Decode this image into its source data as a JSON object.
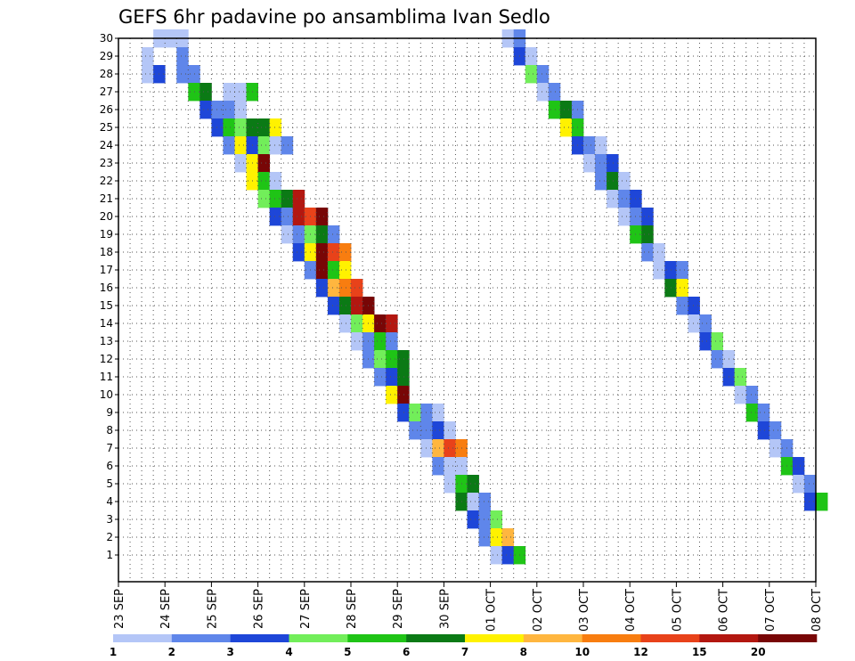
{
  "chart_data": {
    "type": "heatmap",
    "title": "GEFS 6hr padavine po ansamblima Ivan Sedlo",
    "y_labels": [
      "1",
      "2",
      "3",
      "4",
      "5",
      "6",
      "7",
      "8",
      "9",
      "10",
      "11",
      "12",
      "13",
      "14",
      "15",
      "16",
      "17",
      "18",
      "19",
      "20",
      "21",
      "22",
      "23",
      "24",
      "25",
      "26",
      "27",
      "28",
      "29",
      "30"
    ],
    "x_labels": [
      "23 SEP",
      "24 SEP",
      "25 SEP",
      "26 SEP",
      "27 SEP",
      "28 SEP",
      "29 SEP",
      "30 SEP",
      "01 OCT",
      "02 OCT",
      "03 OCT",
      "04 OCT",
      "05 OCT",
      "06 OCT",
      "07 OCT",
      "08 OCT"
    ],
    "x_range_steps": [
      0,
      60
    ],
    "y_range_members": [
      0,
      30
    ],
    "grid": true,
    "colorbar": {
      "levels": [
        "1",
        "2",
        "3",
        "4",
        "5",
        "6",
        "7",
        "8",
        "10",
        "12",
        "15",
        "20"
      ],
      "colors": [
        "#b4c6f7",
        "#5f86ea",
        "#1e46d8",
        "#72ee5a",
        "#1fc416",
        "#0b7a15",
        "#fff200",
        "#ffb63f",
        "#f87d10",
        "#e8421a",
        "#b31710",
        "#780606"
      ]
    },
    "cells": [
      [
        3,
        30,
        0
      ],
      [
        4,
        30,
        0
      ],
      [
        5,
        30,
        0
      ],
      [
        5,
        29,
        1
      ],
      [
        2,
        29,
        0
      ],
      [
        5,
        28,
        1
      ],
      [
        6,
        28,
        1
      ],
      [
        2,
        28,
        0
      ],
      [
        3,
        28,
        2
      ],
      [
        6,
        27,
        4
      ],
      [
        7,
        27,
        5
      ],
      [
        9,
        27,
        0
      ],
      [
        10,
        27,
        0
      ],
      [
        11,
        27,
        4
      ],
      [
        7,
        26,
        2
      ],
      [
        8,
        26,
        1
      ],
      [
        9,
        26,
        1
      ],
      [
        10,
        26,
        0
      ],
      [
        8,
        25,
        2
      ],
      [
        9,
        25,
        4
      ],
      [
        10,
        25,
        3
      ],
      [
        11,
        25,
        5
      ],
      [
        12,
        25,
        5
      ],
      [
        13,
        25,
        6
      ],
      [
        9,
        24,
        1
      ],
      [
        10,
        24,
        6
      ],
      [
        11,
        24,
        2
      ],
      [
        12,
        24,
        3
      ],
      [
        13,
        24,
        0
      ],
      [
        14,
        24,
        1
      ],
      [
        10,
        23,
        0
      ],
      [
        11,
        23,
        6
      ],
      [
        12,
        23,
        11
      ],
      [
        11,
        22,
        6
      ],
      [
        12,
        22,
        4
      ],
      [
        13,
        22,
        0
      ],
      [
        12,
        21,
        3
      ],
      [
        13,
        21,
        4
      ],
      [
        14,
        21,
        5
      ],
      [
        15,
        21,
        10
      ],
      [
        13,
        20,
        2
      ],
      [
        14,
        20,
        1
      ],
      [
        15,
        20,
        10
      ],
      [
        16,
        20,
        9
      ],
      [
        17,
        20,
        11
      ],
      [
        14,
        19,
        0
      ],
      [
        15,
        19,
        1
      ],
      [
        16,
        19,
        3
      ],
      [
        17,
        19,
        5
      ],
      [
        18,
        19,
        1
      ],
      [
        15,
        18,
        2
      ],
      [
        16,
        18,
        6
      ],
      [
        17,
        18,
        11
      ],
      [
        18,
        18,
        9
      ],
      [
        19,
        18,
        8
      ],
      [
        16,
        17,
        1
      ],
      [
        17,
        17,
        11
      ],
      [
        18,
        17,
        4
      ],
      [
        19,
        17,
        6
      ],
      [
        17,
        16,
        2
      ],
      [
        18,
        16,
        7
      ],
      [
        19,
        16,
        8
      ],
      [
        20,
        16,
        9
      ],
      [
        18,
        15,
        2
      ],
      [
        19,
        15,
        5
      ],
      [
        20,
        15,
        10
      ],
      [
        21,
        15,
        11
      ],
      [
        19,
        14,
        0
      ],
      [
        20,
        14,
        3
      ],
      [
        21,
        14,
        6
      ],
      [
        22,
        14,
        11
      ],
      [
        23,
        14,
        10
      ],
      [
        20,
        13,
        0
      ],
      [
        21,
        13,
        1
      ],
      [
        22,
        13,
        4
      ],
      [
        23,
        13,
        1
      ],
      [
        21,
        12,
        1
      ],
      [
        22,
        12,
        3
      ],
      [
        23,
        12,
        4
      ],
      [
        24,
        12,
        5
      ],
      [
        22,
        11,
        1
      ],
      [
        23,
        11,
        2
      ],
      [
        24,
        11,
        5
      ],
      [
        23,
        10,
        6
      ],
      [
        24,
        10,
        11
      ],
      [
        24,
        9,
        2
      ],
      [
        25,
        9,
        3
      ],
      [
        26,
        9,
        1
      ],
      [
        27,
        9,
        0
      ],
      [
        25,
        8,
        1
      ],
      [
        26,
        8,
        1
      ],
      [
        27,
        8,
        2
      ],
      [
        28,
        8,
        0
      ],
      [
        26,
        7,
        0
      ],
      [
        27,
        7,
        7
      ],
      [
        28,
        7,
        9
      ],
      [
        29,
        7,
        8
      ],
      [
        27,
        6,
        1
      ],
      [
        28,
        6,
        0
      ],
      [
        29,
        6,
        0
      ],
      [
        28,
        5,
        0
      ],
      [
        29,
        5,
        4
      ],
      [
        30,
        5,
        5
      ],
      [
        29,
        4,
        5
      ],
      [
        30,
        4,
        0
      ],
      [
        31,
        4,
        1
      ],
      [
        30,
        3,
        2
      ],
      [
        31,
        3,
        1
      ],
      [
        32,
        3,
        3
      ],
      [
        31,
        2,
        1
      ],
      [
        32,
        2,
        6
      ],
      [
        33,
        2,
        7
      ],
      [
        32,
        1,
        0
      ],
      [
        33,
        1,
        2
      ],
      [
        34,
        1,
        4
      ],
      [
        33,
        30,
        0
      ],
      [
        34,
        30,
        1
      ],
      [
        34,
        29,
        2
      ],
      [
        35,
        29,
        0
      ],
      [
        35,
        28,
        3
      ],
      [
        36,
        28,
        1
      ],
      [
        36,
        27,
        0
      ],
      [
        37,
        27,
        1
      ],
      [
        37,
        26,
        4
      ],
      [
        38,
        26,
        5
      ],
      [
        39,
        26,
        1
      ],
      [
        38,
        25,
        6
      ],
      [
        39,
        25,
        4
      ],
      [
        39,
        24,
        2
      ],
      [
        40,
        24,
        1
      ],
      [
        41,
        24,
        0
      ],
      [
        40,
        23,
        0
      ],
      [
        41,
        23,
        1
      ],
      [
        42,
        23,
        2
      ],
      [
        41,
        22,
        1
      ],
      [
        42,
        22,
        5
      ],
      [
        43,
        22,
        0
      ],
      [
        42,
        21,
        0
      ],
      [
        43,
        21,
        1
      ],
      [
        44,
        21,
        2
      ],
      [
        43,
        20,
        0
      ],
      [
        44,
        20,
        1
      ],
      [
        45,
        20,
        2
      ],
      [
        44,
        19,
        4
      ],
      [
        45,
        19,
        5
      ],
      [
        45,
        18,
        1
      ],
      [
        46,
        18,
        0
      ],
      [
        46,
        17,
        0
      ],
      [
        47,
        17,
        2
      ],
      [
        48,
        17,
        1
      ],
      [
        47,
        16,
        5
      ],
      [
        48,
        16,
        6
      ],
      [
        48,
        15,
        1
      ],
      [
        49,
        15,
        2
      ],
      [
        49,
        14,
        0
      ],
      [
        50,
        14,
        1
      ],
      [
        50,
        13,
        2
      ],
      [
        51,
        13,
        3
      ],
      [
        51,
        12,
        1
      ],
      [
        52,
        12,
        0
      ],
      [
        52,
        11,
        2
      ],
      [
        53,
        11,
        3
      ],
      [
        53,
        10,
        0
      ],
      [
        54,
        10,
        1
      ],
      [
        54,
        9,
        4
      ],
      [
        55,
        9,
        1
      ],
      [
        55,
        8,
        2
      ],
      [
        56,
        8,
        1
      ],
      [
        56,
        7,
        0
      ],
      [
        57,
        7,
        1
      ],
      [
        57,
        6,
        4
      ],
      [
        58,
        6,
        2
      ],
      [
        58,
        5,
        0
      ],
      [
        59,
        5,
        1
      ],
      [
        59,
        4,
        2
      ],
      [
        60,
        4,
        4
      ]
    ]
  }
}
